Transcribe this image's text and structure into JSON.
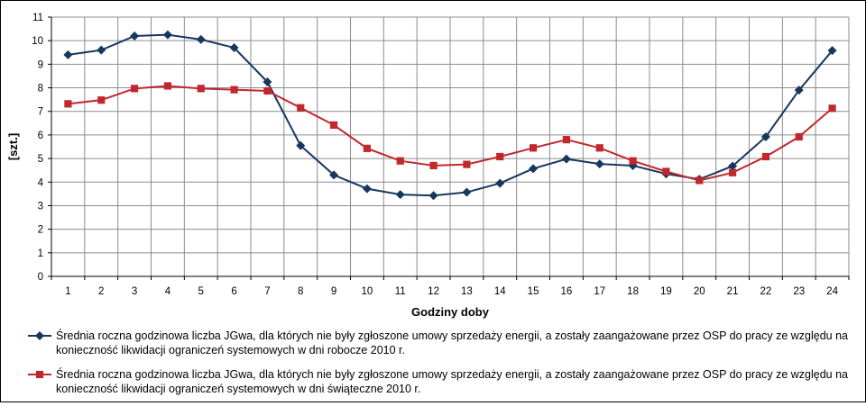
{
  "chart_data": {
    "type": "line",
    "title": "",
    "xlabel": "Godziny doby",
    "ylabel": "[szt.]",
    "x": [
      1,
      2,
      3,
      4,
      5,
      6,
      7,
      8,
      9,
      10,
      11,
      12,
      13,
      14,
      15,
      16,
      17,
      18,
      19,
      20,
      21,
      22,
      23,
      24
    ],
    "xticks": [
      "1",
      "2",
      "3",
      "4",
      "5",
      "6",
      "7",
      "8",
      "9",
      "10",
      "11",
      "12",
      "13",
      "14",
      "15",
      "16",
      "17",
      "18",
      "19",
      "20",
      "21",
      "22",
      "23",
      "24"
    ],
    "ylim": [
      0,
      11
    ],
    "yticks": [
      "0",
      "1",
      "2",
      "3",
      "4",
      "5",
      "6",
      "7",
      "8",
      "9",
      "10",
      "11"
    ],
    "grid": true,
    "legend_position": "bottom",
    "series": [
      {
        "name": "Średnia roczna godzinowa liczba JGwa, dla których nie były zgłoszone umowy sprzedaży energii, a zostały zaangażowane przez OSP do pracy ze względu na konieczność likwidacji ograniczeń systemowych w dni robocze 2010 r.",
        "color": "#17375e",
        "marker": "diamond",
        "values": [
          9.4,
          9.6,
          10.2,
          10.25,
          10.05,
          9.7,
          8.25,
          5.55,
          4.3,
          3.72,
          3.47,
          3.43,
          3.57,
          3.95,
          4.57,
          4.98,
          4.77,
          4.7,
          4.35,
          4.12,
          4.68,
          5.92,
          7.9,
          9.58
        ]
      },
      {
        "name": "Średnia roczna godzinowa liczba JGwa, dla których nie były zgłoszone umowy sprzedaży energii, a zostały zaangażowane przez OSP do pracy ze względu na konieczność likwidacji ograniczeń systemowych w dni świąteczne 2010 r.",
        "color": "#c0282d",
        "marker": "square",
        "values": [
          7.32,
          7.48,
          7.97,
          8.08,
          7.97,
          7.92,
          7.87,
          7.15,
          6.42,
          5.43,
          4.9,
          4.7,
          4.75,
          5.08,
          5.45,
          5.8,
          5.45,
          4.9,
          4.45,
          4.07,
          4.4,
          5.08,
          5.92,
          7.13
        ]
      }
    ]
  }
}
